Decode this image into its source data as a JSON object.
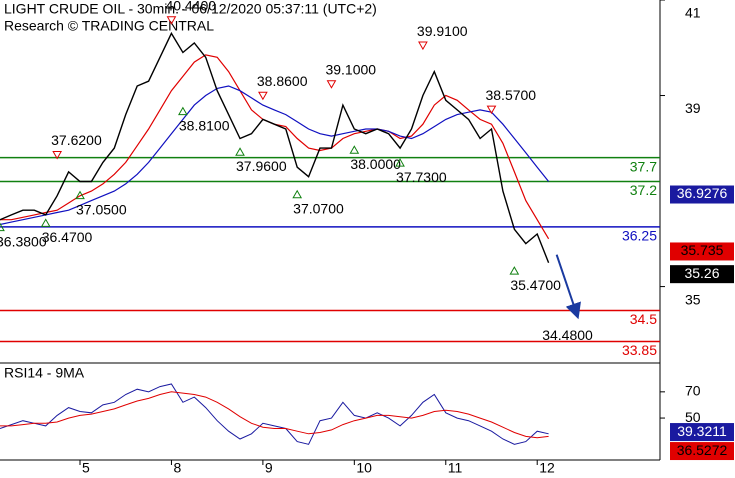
{
  "chart_data": {
    "type": "line",
    "title": "LIGHT CRUDE OIL - 30min. - 06/12/2020 05:37:11 (UTC+2)",
    "subtitle": "Research © TRADING CENTRAL",
    "categories": [
      null,
      null,
      null,
      null,
      null,
      null,
      null,
      "5",
      null,
      null,
      null,
      null,
      null,
      null,
      null,
      "8",
      null,
      null,
      null,
      null,
      null,
      null,
      null,
      "9",
      null,
      null,
      null,
      null,
      null,
      null,
      null,
      "10",
      null,
      null,
      null,
      null,
      null,
      null,
      null,
      "11",
      null,
      null,
      null,
      null,
      null,
      null,
      null,
      "12",
      null
    ],
    "series": [
      {
        "color": "#000000",
        "values": [
          36.4,
          36.5,
          36.6,
          36.6,
          36.5,
          36.9,
          37.4,
          37.2,
          37.2,
          37.6,
          37.9,
          38.6,
          39.2,
          39.3,
          39.8,
          40.3,
          39.9,
          40.1,
          39.8,
          39.1,
          38.6,
          38.1,
          38.2,
          38.5,
          38.4,
          38.3,
          37.5,
          37.3,
          37.9,
          37.9,
          38.8,
          38.3,
          38.2,
          38.3,
          38.2,
          37.9,
          38.3,
          39.0,
          39.5,
          38.9,
          38.7,
          38.5,
          38.1,
          38.3,
          37.0,
          36.2,
          35.9,
          36.1,
          35.5
        ]
      },
      {
        "color": "#e00000",
        "values": [
          36.4,
          36.4,
          36.45,
          36.5,
          36.55,
          36.6,
          36.75,
          36.9,
          37.0,
          37.15,
          37.35,
          37.6,
          37.95,
          38.3,
          38.7,
          39.1,
          39.4,
          39.7,
          39.85,
          39.8,
          39.5,
          39.1,
          38.7,
          38.5,
          38.4,
          38.35,
          38.1,
          37.9,
          37.85,
          37.9,
          38.1,
          38.2,
          38.25,
          38.3,
          38.25,
          38.1,
          38.15,
          38.4,
          38.8,
          39.0,
          38.9,
          38.7,
          38.5,
          38.4,
          38.0,
          37.4,
          36.8,
          36.4,
          36.0
        ]
      },
      {
        "color": "#1010c0",
        "values": [
          36.3,
          36.35,
          36.4,
          36.45,
          36.5,
          36.55,
          36.6,
          36.7,
          36.8,
          36.9,
          37.0,
          37.15,
          37.35,
          37.6,
          37.9,
          38.2,
          38.5,
          38.8,
          39.0,
          39.15,
          39.2,
          39.1,
          38.95,
          38.8,
          38.7,
          38.6,
          38.45,
          38.3,
          38.2,
          38.15,
          38.2,
          38.25,
          38.3,
          38.3,
          38.25,
          38.15,
          38.1,
          38.2,
          38.35,
          38.5,
          38.6,
          38.65,
          38.7,
          38.65,
          38.4,
          38.1,
          37.8,
          37.5,
          37.2
        ]
      }
    ],
    "ylim": [
      33.4,
      41.0
    ],
    "yticks": [
      41,
      39,
      35
    ],
    "levels": [
      {
        "value": 37.7,
        "color": "#108010"
      },
      {
        "value": 37.2,
        "color": "#108010"
      },
      {
        "value": 36.25,
        "color": "#1010c0"
      },
      {
        "value": 34.5,
        "color": "#e00000"
      },
      {
        "value": 33.85,
        "color": "#e00000"
      }
    ],
    "highs": [
      null,
      null,
      null,
      null,
      null,
      {
        "value": 37.62,
        "label": "37.6200"
      },
      null,
      null,
      null,
      null,
      null,
      null,
      null,
      null,
      null,
      {
        "value": 40.44,
        "label": "40.4400"
      },
      null,
      null,
      null,
      null,
      null,
      null,
      null,
      {
        "value": 38.86,
        "label": "38.8600"
      },
      null,
      null,
      null,
      null,
      null,
      {
        "value": 39.1,
        "label": "39.1000"
      },
      null,
      null,
      null,
      null,
      null,
      null,
      null,
      {
        "value": 39.91,
        "label": "39.9100"
      },
      null,
      null,
      null,
      null,
      null,
      {
        "value": 38.57,
        "label": "38.5700"
      },
      null,
      null,
      null,
      null,
      null
    ],
    "lows": [
      {
        "value": 36.38,
        "label": "36.3800"
      },
      null,
      null,
      null,
      {
        "value": 36.47,
        "label": "36.4700"
      },
      null,
      null,
      {
        "value": 37.05,
        "label": "37.0500"
      },
      null,
      null,
      null,
      null,
      null,
      null,
      null,
      null,
      {
        "value": 38.81,
        "label": "38.8100"
      },
      null,
      null,
      null,
      null,
      {
        "value": 37.96,
        "label": "37.9600"
      },
      null,
      null,
      null,
      null,
      {
        "value": 37.07,
        "label": "37.0700"
      },
      null,
      null,
      null,
      null,
      {
        "value": 38.0,
        "label": "38.0000"
      },
      null,
      null,
      null,
      {
        "value": 37.73,
        "label": "37.7300"
      },
      null,
      null,
      null,
      null,
      null,
      null,
      null,
      null,
      null,
      {
        "value": 35.47,
        "label": "35.4700"
      },
      null,
      null,
      null
    ],
    "target": {
      "value": 34.48,
      "label": "34.4800",
      "color": "#1a3aa0"
    },
    "price_boxes": [
      {
        "value": 36.9276,
        "color": "#1a1aa0",
        "text_color": "#ffffff"
      },
      {
        "value": 35.735,
        "color": "#e00000",
        "text_color": "#000000"
      },
      {
        "value": 35.26,
        "color": "#000000",
        "text_color": "#ffffff"
      }
    ],
    "rsi": {
      "title": "RSI14 - 9MA",
      "ylim": [
        18,
        92
      ],
      "yticks": [
        70,
        50
      ],
      "series": [
        {
          "color": "#1a1aa0",
          "values": [
            42,
            45,
            48,
            46,
            44,
            52,
            58,
            55,
            54,
            60,
            62,
            68,
            72,
            70,
            74,
            76,
            62,
            66,
            58,
            48,
            40,
            34,
            38,
            46,
            44,
            42,
            32,
            30,
            48,
            50,
            62,
            52,
            50,
            54,
            50,
            44,
            52,
            62,
            68,
            54,
            50,
            48,
            44,
            40,
            34,
            30,
            32,
            40,
            38
          ]
        },
        {
          "color": "#e00000",
          "values": [
            44,
            44,
            45,
            46,
            46,
            47,
            50,
            52,
            53,
            55,
            57,
            60,
            63,
            65,
            68,
            70,
            69,
            68,
            66,
            62,
            57,
            51,
            46,
            43,
            42,
            42,
            40,
            38,
            39,
            41,
            45,
            48,
            50,
            52,
            52,
            51,
            50,
            52,
            55,
            56,
            55,
            53,
            50,
            47,
            43,
            39,
            36,
            35,
            36
          ]
        }
      ],
      "boxes": [
        {
          "value": 39.3211,
          "color": "#1a1aa0",
          "text_color": "#ffffff"
        },
        {
          "value": 36.5272,
          "color": "#e00000",
          "text_color": "#000000"
        }
      ]
    }
  }
}
